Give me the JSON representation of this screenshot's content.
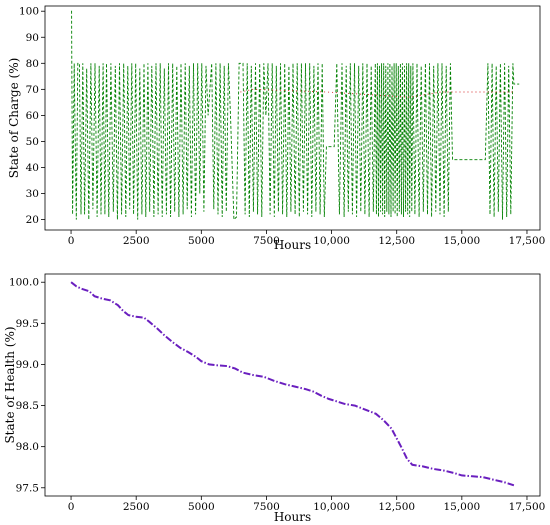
{
  "chart_data": [
    {
      "type": "line",
      "title": "",
      "xlabel": "Hours",
      "ylabel": "State of Charge (%)",
      "xlim": [
        -1000,
        18000
      ],
      "ylim": [
        16,
        102
      ],
      "xticks": [
        0,
        2500,
        5000,
        7500,
        10000,
        12500,
        15000,
        17500
      ],
      "xtick_labels": [
        "0",
        "2500",
        "5000",
        "7500",
        "10,000",
        "12,500",
        "15,000",
        "17,500"
      ],
      "yticks": [
        20,
        30,
        40,
        50,
        60,
        70,
        80,
        90,
        100
      ],
      "ytick_labels": [
        "20",
        "30",
        "40",
        "50",
        "60",
        "70",
        "80",
        "90",
        "100"
      ],
      "grid": false,
      "series": [
        {
          "color": "#008000",
          "linestyle": "dashed",
          "segments": [
            {
              "x": [
                0,
                17000
              ],
              "y_range": [
                20,
                80
              ],
              "note_start": 100
            }
          ],
          "points": [
            [
              0,
              100
            ],
            [
              20,
              100
            ],
            [
              30,
              80
            ],
            [
              60,
              22
            ],
            [
              120,
              80
            ],
            [
              200,
              20
            ],
            [
              260,
              80
            ],
            [
              320,
              80
            ],
            [
              380,
              22
            ],
            [
              450,
              80
            ],
            [
              520,
              22
            ],
            [
              600,
              78
            ],
            [
              680,
              20
            ],
            [
              760,
              80
            ],
            [
              840,
              24
            ],
            [
              920,
              80
            ],
            [
              1000,
              21
            ],
            [
              1080,
              79
            ],
            [
              1150,
              22
            ],
            [
              1230,
              80
            ],
            [
              1300,
              22
            ],
            [
              1360,
              80
            ],
            [
              1450,
              21
            ],
            [
              1530,
              80
            ],
            [
              1620,
              23
            ],
            [
              1700,
              79
            ],
            [
              1780,
              20
            ],
            [
              1860,
              80
            ],
            [
              1940,
              22
            ],
            [
              2020,
              80
            ],
            [
              2100,
              21
            ],
            [
              2180,
              79
            ],
            [
              2250,
              24
            ],
            [
              2330,
              80
            ],
            [
              2400,
              22
            ],
            [
              2480,
              80
            ],
            [
              2560,
              20
            ],
            [
              2640,
              78
            ],
            [
              2720,
              22
            ],
            [
              2800,
              80
            ],
            [
              2870,
              21
            ],
            [
              2950,
              80
            ],
            [
              3020,
              23
            ],
            [
              3100,
              79
            ],
            [
              3180,
              21
            ],
            [
              3260,
              80
            ],
            [
              3340,
              22
            ],
            [
              3420,
              80
            ],
            [
              3500,
              21
            ],
            [
              3580,
              78
            ],
            [
              3660,
              22
            ],
            [
              3740,
              80
            ],
            [
              3820,
              21
            ],
            [
              3900,
              80
            ],
            [
              3980,
              23
            ],
            [
              4060,
              79
            ],
            [
              4140,
              21
            ],
            [
              4220,
              80
            ],
            [
              4300,
              22
            ],
            [
              4380,
              80
            ],
            [
              4460,
              24
            ],
            [
              4540,
              79
            ],
            [
              4620,
              21
            ],
            [
              4700,
              80
            ],
            [
              4780,
              22
            ],
            [
              4860,
              80
            ],
            [
              4940,
              30
            ],
            [
              5020,
              80
            ],
            [
              5100,
              23
            ],
            [
              5180,
              79
            ],
            [
              5260,
              60
            ],
            [
              5400,
              80
            ],
            [
              5480,
              24
            ],
            [
              5560,
              80
            ],
            [
              5640,
              22
            ],
            [
              5720,
              80
            ],
            [
              5800,
              21
            ],
            [
              5880,
              79
            ],
            [
              5960,
              23
            ],
            [
              6040,
              80
            ],
            [
              6120,
              60
            ],
            [
              6250,
              20
            ],
            [
              6350,
              21
            ],
            [
              6450,
              80
            ],
            [
              6600,
              80
            ],
            [
              6680,
              22
            ],
            [
              6760,
              80
            ],
            [
              6840,
              21
            ],
            [
              6920,
              79
            ],
            [
              7000,
              23
            ],
            [
              7080,
              80
            ],
            [
              7160,
              22
            ],
            [
              7240,
              80
            ],
            [
              7320,
              21
            ],
            [
              7400,
              80
            ],
            [
              7480,
              60
            ],
            [
              7560,
              80
            ],
            [
              7640,
              22
            ],
            [
              7720,
              80
            ],
            [
              7800,
              21
            ],
            [
              7880,
              79
            ],
            [
              7960,
              23
            ],
            [
              8040,
              80
            ],
            [
              8120,
              22
            ],
            [
              8200,
              80
            ],
            [
              8280,
              21
            ],
            [
              8360,
              79
            ],
            [
              8440,
              23
            ],
            [
              8520,
              80
            ],
            [
              8600,
              22
            ],
            [
              8680,
              80
            ],
            [
              8760,
              21
            ],
            [
              8840,
              80
            ],
            [
              8920,
              23
            ],
            [
              9000,
              80
            ],
            [
              9080,
              22
            ],
            [
              9160,
              80
            ],
            [
              9240,
              21
            ],
            [
              9320,
              79
            ],
            [
              9400,
              23
            ],
            [
              9480,
              80
            ],
            [
              9560,
              22
            ],
            [
              9640,
              80
            ],
            [
              9720,
              21
            ],
            [
              9800,
              48
            ],
            [
              10100,
              48
            ],
            [
              10200,
              80
            ],
            [
              10300,
              22
            ],
            [
              10400,
              80
            ],
            [
              10480,
              21
            ],
            [
              10560,
              79
            ],
            [
              10640,
              23
            ],
            [
              10720,
              80
            ],
            [
              10800,
              22
            ],
            [
              10880,
              80
            ],
            [
              10960,
              21
            ],
            [
              11040,
              79
            ],
            [
              11120,
              23
            ],
            [
              11200,
              80
            ],
            [
              11280,
              22
            ],
            [
              11360,
              80
            ],
            [
              11440,
              21
            ],
            [
              11520,
              79
            ],
            [
              11600,
              23
            ],
            [
              11680,
              80
            ],
            [
              11720,
              22
            ],
            [
              11760,
              80
            ],
            [
              11800,
              21
            ],
            [
              11840,
              79
            ],
            [
              11880,
              23
            ],
            [
              11920,
              80
            ],
            [
              11960,
              22
            ],
            [
              12000,
              80
            ],
            [
              12040,
              21
            ],
            [
              12080,
              79
            ],
            [
              12120,
              23
            ],
            [
              12160,
              80
            ],
            [
              12200,
              22
            ],
            [
              12240,
              80
            ],
            [
              12280,
              21
            ],
            [
              12320,
              79
            ],
            [
              12360,
              23
            ],
            [
              12400,
              80
            ],
            [
              12440,
              22
            ],
            [
              12480,
              80
            ],
            [
              12520,
              21
            ],
            [
              12560,
              79
            ],
            [
              12600,
              23
            ],
            [
              12640,
              80
            ],
            [
              12680,
              22
            ],
            [
              12720,
              80
            ],
            [
              12760,
              21
            ],
            [
              12800,
              79
            ],
            [
              12840,
              23
            ],
            [
              12880,
              80
            ],
            [
              12920,
              22
            ],
            [
              12960,
              80
            ],
            [
              13000,
              21
            ],
            [
              13040,
              79
            ],
            [
              13080,
              23
            ],
            [
              13120,
              80
            ],
            [
              13200,
              22
            ],
            [
              13280,
              80
            ],
            [
              13360,
              21
            ],
            [
              13440,
              79
            ],
            [
              13520,
              23
            ],
            [
              13600,
              80
            ],
            [
              13680,
              22
            ],
            [
              13760,
              80
            ],
            [
              13840,
              21
            ],
            [
              13920,
              79
            ],
            [
              14000,
              23
            ],
            [
              14080,
              80
            ],
            [
              14160,
              22
            ],
            [
              14240,
              80
            ],
            [
              14320,
              21
            ],
            [
              14400,
              79
            ],
            [
              14480,
              23
            ],
            [
              14560,
              80
            ],
            [
              14640,
              43
            ],
            [
              15900,
              43
            ],
            [
              16000,
              80
            ],
            [
              16080,
              22
            ],
            [
              16160,
              80
            ],
            [
              16240,
              21
            ],
            [
              16320,
              79
            ],
            [
              16400,
              23
            ],
            [
              16480,
              80
            ],
            [
              16560,
              20
            ],
            [
              16640,
              80
            ],
            [
              16720,
              21
            ],
            [
              16800,
              79
            ],
            [
              16880,
              22
            ],
            [
              16960,
              80
            ],
            [
              17000,
              72
            ],
            [
              17200,
              72
            ]
          ]
        },
        {
          "color": "#d62728",
          "linestyle": "dotted",
          "points": [
            [
              6500,
              69
            ],
            [
              7000,
              70
            ],
            [
              9800,
              69
            ],
            [
              13000,
              67
            ],
            [
              14200,
              69
            ],
            [
              16000,
              69
            ],
            [
              17000,
              69
            ]
          ]
        }
      ]
    },
    {
      "type": "line",
      "title": "",
      "xlabel": "Hours",
      "ylabel": "State of Health (%)",
      "xlim": [
        -1000,
        18000
      ],
      "ylim": [
        97.4,
        100.1
      ],
      "xticks": [
        0,
        2500,
        5000,
        7500,
        10000,
        12500,
        15000,
        17500
      ],
      "xtick_labels": [
        "0",
        "2500",
        "5000",
        "7500",
        "10,000",
        "12,500",
        "15,000",
        "17,500"
      ],
      "yticks": [
        97.5,
        98.0,
        98.5,
        99.0,
        99.5,
        100.0
      ],
      "ytick_labels": [
        "97.5",
        "98.0",
        "98.5",
        "99.0",
        "99.5",
        "100.0"
      ],
      "grid": false,
      "series": [
        {
          "color": "#6a1fbf",
          "linestyle": "dashdot",
          "x": [
            0,
            200,
            400,
            700,
            900,
            1200,
            1500,
            1800,
            2000,
            2200,
            2500,
            2800,
            3000,
            3300,
            3600,
            3900,
            4200,
            4500,
            4800,
            5000,
            5300,
            5600,
            6000,
            6300,
            6600,
            7000,
            7400,
            7800,
            8200,
            8600,
            9000,
            9300,
            9600,
            9900,
            10200,
            10500,
            10900,
            11300,
            11700,
            12000,
            12300,
            12500,
            12700,
            12900,
            13100,
            13500,
            13900,
            14300,
            14700,
            15000,
            15400,
            15800,
            16200,
            16600,
            17000
          ],
          "values": [
            100.0,
            99.95,
            99.92,
            99.89,
            99.83,
            99.8,
            99.78,
            99.72,
            99.65,
            99.6,
            99.58,
            99.57,
            99.52,
            99.44,
            99.35,
            99.27,
            99.2,
            99.15,
            99.09,
            99.04,
            99.0,
            98.99,
            98.98,
            98.95,
            98.9,
            98.87,
            98.85,
            98.8,
            98.76,
            98.73,
            98.7,
            98.67,
            98.62,
            98.58,
            98.55,
            98.52,
            98.5,
            98.45,
            98.4,
            98.32,
            98.22,
            98.1,
            97.98,
            97.85,
            97.78,
            97.76,
            97.73,
            97.71,
            97.68,
            97.65,
            97.64,
            97.63,
            97.6,
            97.57,
            97.53
          ]
        }
      ]
    }
  ]
}
